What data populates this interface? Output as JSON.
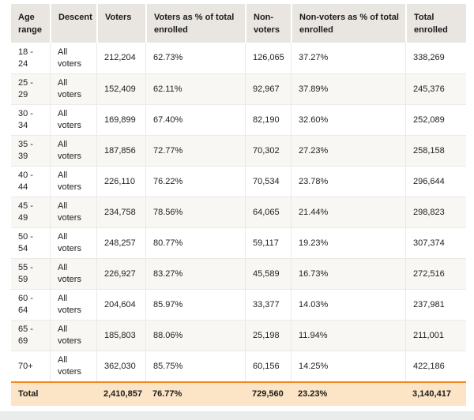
{
  "table": {
    "columns": [
      {
        "label": "Age range"
      },
      {
        "label": "Descent"
      },
      {
        "label": "Voters"
      },
      {
        "label": "Voters as % of total enrolled"
      },
      {
        "label": "Non-voters"
      },
      {
        "label": "Non-voters as % of total enrolled"
      },
      {
        "label": "Total enrolled"
      }
    ],
    "rows": [
      {
        "age_range": "18 - 24",
        "descent": "All voters",
        "voters": "212,204",
        "voters_pct": "62.73%",
        "non_voters": "126,065",
        "non_voters_pct": "37.27%",
        "total_enrolled": "338,269"
      },
      {
        "age_range": "25 - 29",
        "descent": "All voters",
        "voters": "152,409",
        "voters_pct": "62.11%",
        "non_voters": "92,967",
        "non_voters_pct": "37.89%",
        "total_enrolled": "245,376"
      },
      {
        "age_range": "30 - 34",
        "descent": "All voters",
        "voters": "169,899",
        "voters_pct": "67.40%",
        "non_voters": "82,190",
        "non_voters_pct": "32.60%",
        "total_enrolled": "252,089"
      },
      {
        "age_range": "35 - 39",
        "descent": "All voters",
        "voters": "187,856",
        "voters_pct": "72.77%",
        "non_voters": "70,302",
        "non_voters_pct": "27.23%",
        "total_enrolled": "258,158"
      },
      {
        "age_range": "40 - 44",
        "descent": "All voters",
        "voters": "226,110",
        "voters_pct": "76.22%",
        "non_voters": "70,534",
        "non_voters_pct": "23.78%",
        "total_enrolled": "296,644"
      },
      {
        "age_range": "45 - 49",
        "descent": "All voters",
        "voters": "234,758",
        "voters_pct": "78.56%",
        "non_voters": "64,065",
        "non_voters_pct": "21.44%",
        "total_enrolled": "298,823"
      },
      {
        "age_range": "50 - 54",
        "descent": "All voters",
        "voters": "248,257",
        "voters_pct": "80.77%",
        "non_voters": "59,117",
        "non_voters_pct": "19.23%",
        "total_enrolled": "307,374"
      },
      {
        "age_range": "55 - 59",
        "descent": "All voters",
        "voters": "226,927",
        "voters_pct": "83.27%",
        "non_voters": "45,589",
        "non_voters_pct": "16.73%",
        "total_enrolled": "272,516"
      },
      {
        "age_range": "60 - 64",
        "descent": "All voters",
        "voters": "204,604",
        "voters_pct": "85.97%",
        "non_voters": "33,377",
        "non_voters_pct": "14.03%",
        "total_enrolled": "237,981"
      },
      {
        "age_range": "65 - 69",
        "descent": "All voters",
        "voters": "185,803",
        "voters_pct": "88.06%",
        "non_voters": "25,198",
        "non_voters_pct": "11.94%",
        "total_enrolled": "211,001"
      },
      {
        "age_range": "70+",
        "descent": "All voters",
        "voters": "362,030",
        "voters_pct": "85.75%",
        "non_voters": "60,156",
        "non_voters_pct": "14.25%",
        "total_enrolled": "422,186"
      }
    ],
    "total_row": {
      "label": "Total",
      "voters": "2,410,857",
      "voters_pct": "76.77%",
      "non_voters": "729,560",
      "non_voters_pct": "23.23%",
      "total_enrolled": "3,140,417"
    }
  },
  "colors": {
    "header_bg": "#e9e6e1",
    "alt_row_bg": "#f8f7f4",
    "row_border": "#eae9e6",
    "total_row_bg": "#fce4c6",
    "total_row_border": "#f5871f",
    "footer_band_bg": "#eaecec"
  }
}
